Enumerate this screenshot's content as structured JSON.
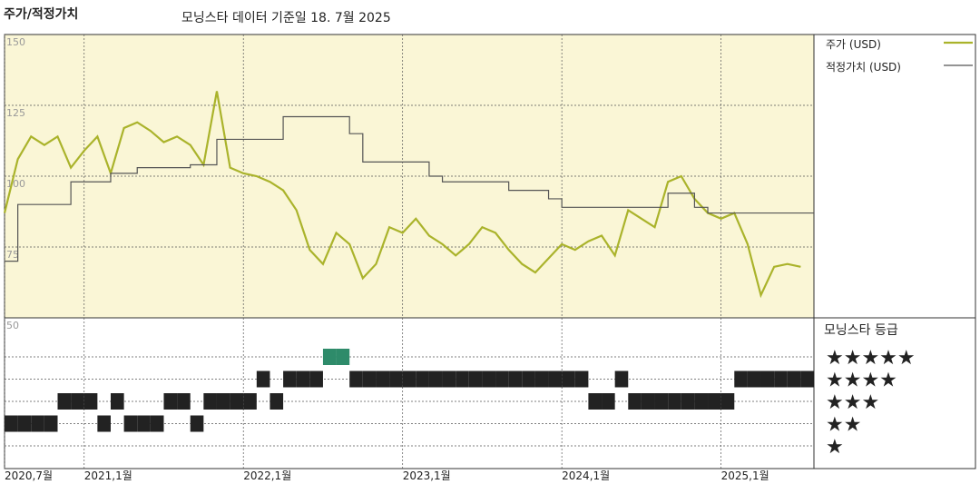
{
  "chart_data": {
    "type": "line",
    "title": "주가/적정가치",
    "subtitle": "모닝스타 데이터 기준일 18. 7월 2025",
    "x": [
      "2020-07",
      "2020-08",
      "2020-09",
      "2020-10",
      "2020-11",
      "2020-12",
      "2021-01",
      "2021-02",
      "2021-03",
      "2021-04",
      "2021-05",
      "2021-06",
      "2021-07",
      "2021-08",
      "2021-09",
      "2021-10",
      "2021-11",
      "2021-12",
      "2022-01",
      "2022-02",
      "2022-03",
      "2022-04",
      "2022-05",
      "2022-06",
      "2022-07",
      "2022-08",
      "2022-09",
      "2022-10",
      "2022-11",
      "2022-12",
      "2023-01",
      "2023-02",
      "2023-03",
      "2023-04",
      "2023-05",
      "2023-06",
      "2023-07",
      "2023-08",
      "2023-09",
      "2023-10",
      "2023-11",
      "2023-12",
      "2024-01",
      "2024-02",
      "2024-03",
      "2024-04",
      "2024-05",
      "2024-06",
      "2024-07",
      "2024-08",
      "2024-09",
      "2024-10",
      "2024-11",
      "2024-12",
      "2025-01",
      "2025-02",
      "2025-03",
      "2025-04",
      "2025-05",
      "2025-06",
      "2025-07"
    ],
    "xlim": [
      "2020-07",
      "2025-08"
    ],
    "xticks": [
      {
        "value": "2020-07",
        "label": "2020,7월"
      },
      {
        "value": "2021-01",
        "label": "2021,1월"
      },
      {
        "value": "2022-01",
        "label": "2022,1월"
      },
      {
        "value": "2023-01",
        "label": "2023,1월"
      },
      {
        "value": "2024-01",
        "label": "2024,1월"
      },
      {
        "value": "2025-01",
        "label": "2025,1월"
      }
    ],
    "ylim": [
      50,
      150
    ],
    "yticks": [
      50,
      75,
      100,
      125,
      150
    ],
    "grid": true,
    "series": [
      {
        "name": "주가 (USD)",
        "color": "#aab32b",
        "values": [
          87,
          106,
          114,
          111,
          114,
          103,
          109,
          114,
          101,
          117,
          119,
          116,
          112,
          114,
          111,
          104,
          130,
          103,
          101,
          100,
          98,
          95,
          88,
          74,
          69,
          80,
          76,
          64,
          69,
          82,
          80,
          85,
          79,
          76,
          72,
          76,
          82,
          80,
          74,
          69,
          66,
          71,
          76,
          74,
          77,
          79,
          72,
          88,
          85,
          82,
          98,
          100,
          92,
          87,
          85,
          87,
          76,
          58,
          68,
          69,
          68
        ]
      },
      {
        "name": "적정가치 (USD)",
        "color": "#555555",
        "step": true,
        "values": [
          70,
          90,
          90,
          90,
          90,
          98,
          98,
          98,
          101,
          101,
          103,
          103,
          103,
          103,
          104,
          104,
          113,
          113,
          113,
          113,
          113,
          121,
          121,
          121,
          121,
          121,
          115,
          105,
          105,
          105,
          105,
          105,
          100,
          98,
          98,
          98,
          98,
          98,
          95,
          95,
          95,
          92,
          89,
          89,
          89,
          89,
          89,
          89,
          89,
          89,
          94,
          94,
          89,
          87,
          87,
          87,
          87,
          87,
          87,
          87,
          87
        ]
      }
    ],
    "rating": {
      "title": "모닝스타 등급",
      "levels": [
        "★",
        "★★",
        "★★★",
        "★★★★",
        "★★★★★"
      ],
      "color": "#222222",
      "top_color": "#2e8b6a",
      "values": [
        2,
        2,
        2,
        2,
        3,
        3,
        3,
        2,
        3,
        2,
        2,
        2,
        3,
        3,
        2,
        3,
        3,
        3,
        3,
        4,
        3,
        4,
        4,
        4,
        5,
        5,
        4,
        4,
        4,
        4,
        4,
        4,
        4,
        4,
        4,
        4,
        4,
        4,
        4,
        4,
        4,
        4,
        4,
        4,
        3,
        3,
        4,
        3,
        3,
        3,
        3,
        3,
        3,
        3,
        3,
        4,
        4,
        4,
        4,
        4,
        4
      ]
    }
  }
}
